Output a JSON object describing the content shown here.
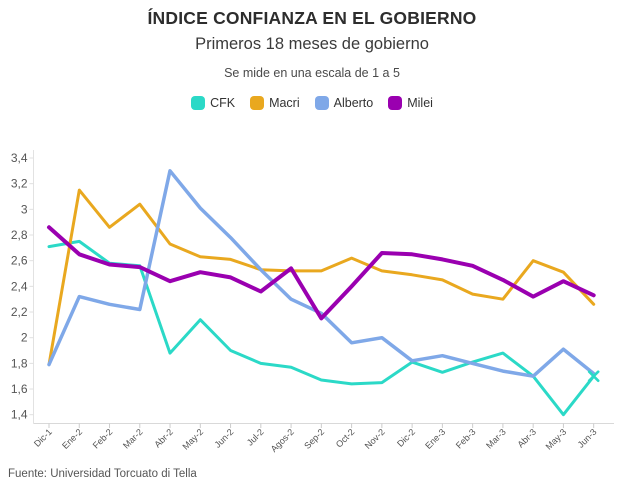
{
  "header": {
    "title": "ÍNDICE CONFIANZA EN EL GOBIERNO",
    "subtitle": "Primeros 18 meses de gobierno",
    "scale_note": "Se mide en una escala de 1 a 5"
  },
  "legend": {
    "items": [
      {
        "label": "CFK",
        "color": "#2bd9c7"
      },
      {
        "label": "Macri",
        "color": "#e9a81f"
      },
      {
        "label": "Alberto",
        "color": "#7fa8e8"
      },
      {
        "label": "Milei",
        "color": "#9a00b0"
      }
    ]
  },
  "chart_data": {
    "type": "line",
    "title": "ÍNDICE CONFIANZA EN EL GOBIERNO",
    "subtitle": "Primeros 18 meses de gobierno",
    "note": "Se mide en una escala de 1 a 5",
    "xlabel": "",
    "ylabel": "",
    "ylim": [
      1.4,
      3.4
    ],
    "grid": "none",
    "legend_position": "top",
    "y_tick_values": [
      1.4,
      1.6,
      1.8,
      2.0,
      2.2,
      2.4,
      2.6,
      2.8,
      3.0,
      3.2,
      3.4
    ],
    "y_tick_labels": [
      "1,4",
      "1,6",
      "1,8",
      "2",
      "2,2",
      "2,4",
      "2,6",
      "2,8",
      "3",
      "3,2",
      "3,4"
    ],
    "categories": [
      "Dic-1",
      "Ene-2",
      "Feb-2",
      "Mar-2",
      "Abr-2",
      "May-2",
      "Jun-2",
      "Jul-2",
      "Agos-2",
      "Sep-2",
      "Oct-2",
      "Nov-2",
      "Dic-2",
      "Ene-3",
      "Feb-3",
      "Mar-3",
      "Abr-3",
      "May-3",
      "Jun-3"
    ],
    "series": [
      {
        "name": "CFK",
        "color": "#2bd9c7",
        "stroke_width": 3,
        "values": [
          2.71,
          2.75,
          2.58,
          2.56,
          1.88,
          2.14,
          1.9,
          1.8,
          1.77,
          1.67,
          1.64,
          1.65,
          1.81,
          1.73,
          1.81,
          1.88,
          1.7,
          1.4,
          1.7
        ]
      },
      {
        "name": "Macri",
        "color": "#e9a81f",
        "stroke_width": 3,
        "values": [
          1.79,
          3.15,
          2.86,
          3.04,
          2.73,
          2.63,
          2.61,
          2.53,
          2.52,
          2.52,
          2.62,
          2.52,
          2.49,
          2.45,
          2.34,
          2.3,
          2.6,
          2.51,
          2.26
        ]
      },
      {
        "name": "Alberto",
        "color": "#7fa8e8",
        "stroke_width": 3.5,
        "values": [
          1.79,
          2.32,
          2.26,
          2.22,
          3.3,
          3.01,
          2.78,
          2.53,
          2.3,
          2.19,
          1.96,
          2.0,
          1.82,
          1.86,
          1.8,
          1.74,
          1.7,
          1.91,
          1.72
        ]
      },
      {
        "name": "Milei",
        "color": "#9a00b0",
        "stroke_width": 4,
        "values": [
          2.86,
          2.65,
          2.57,
          2.55,
          2.44,
          2.51,
          2.47,
          2.36,
          2.54,
          2.15,
          2.4,
          2.66,
          2.65,
          2.61,
          2.56,
          2.45,
          2.32,
          2.44,
          2.33
        ]
      }
    ],
    "end_marker": {
      "series": "CFK",
      "shape": "x"
    }
  },
  "footer": {
    "source": "Fuente: Universidad Torcuato di Tella"
  }
}
